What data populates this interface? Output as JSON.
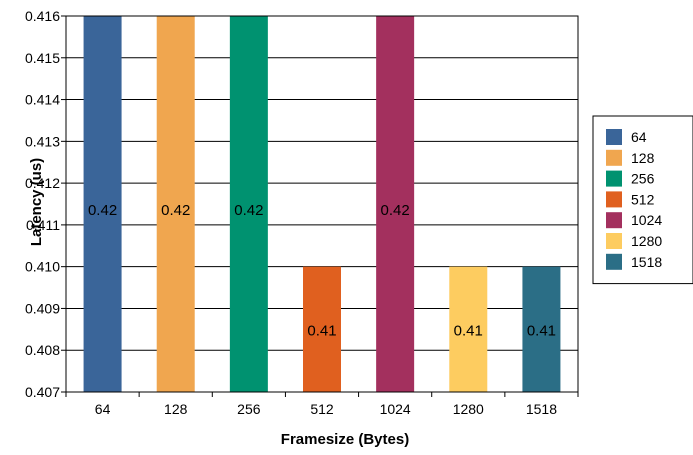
{
  "chart_data": {
    "type": "bar",
    "categories": [
      "64",
      "128",
      "256",
      "512",
      "1024",
      "1280",
      "1518"
    ],
    "values": [
      0.42,
      0.42,
      0.42,
      0.41,
      0.42,
      0.41,
      0.41
    ],
    "data_labels": [
      "0.42",
      "0.42",
      "0.42",
      "0.41",
      "0.42",
      "0.41",
      "0.41"
    ],
    "colors": [
      "#3a6599",
      "#f0a64f",
      "#009270",
      "#e0601f",
      "#a3305e",
      "#fdcc60",
      "#2b6e86"
    ],
    "xlabel": "Framesize (Bytes)",
    "ylabel": "Latency (us)",
    "ylim": [
      0.407,
      0.416
    ],
    "yticks": [
      "0.407",
      "0.408",
      "0.409",
      "0.410",
      "0.411",
      "0.412",
      "0.413",
      "0.414",
      "0.415",
      "0.416"
    ],
    "grid": true,
    "legend": {
      "placement": "right",
      "entries": [
        "64",
        "128",
        "256",
        "512",
        "1024",
        "1280",
        "1518"
      ]
    }
  }
}
